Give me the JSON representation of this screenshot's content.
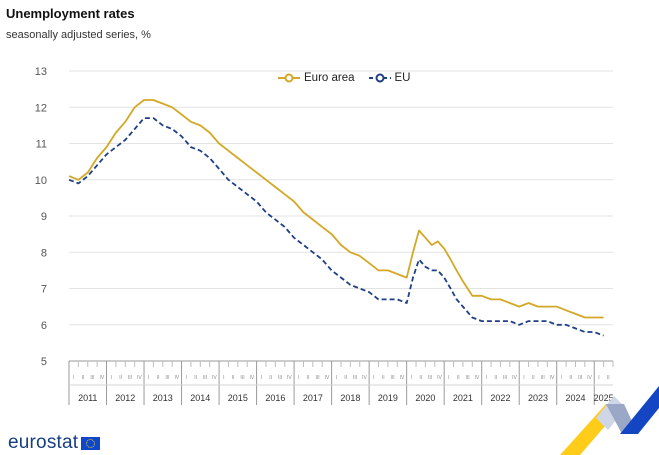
{
  "header": {
    "title": "Unemployment rates",
    "subtitle": "seasonally adjusted series, %"
  },
  "footer": {
    "brand": "eurostat"
  },
  "colors": {
    "euro_area": "#d4a826",
    "eu": "#1f3f86",
    "grid": "#e3e3e3",
    "axis_text": "#555555"
  },
  "chart_data": {
    "type": "line",
    "title": "Unemployment rates",
    "subtitle": "seasonally adjusted series, %",
    "ylim": [
      5,
      13
    ],
    "yticks": [
      5,
      6,
      7,
      8,
      9,
      10,
      11,
      12,
      13
    ],
    "xlim": [
      2011.0,
      2025.5
    ],
    "year_labels": [
      "2011",
      "2012",
      "2013",
      "2014",
      "2015",
      "2016",
      "2017",
      "2018",
      "2019",
      "2020",
      "2021",
      "2022",
      "2023",
      "2024",
      "2025"
    ],
    "quarter_labels": [
      "I",
      "II",
      "III",
      "IV"
    ],
    "legend": {
      "position": "top-center"
    },
    "grid": true,
    "series": [
      {
        "name": "Euro area",
        "style": "solid",
        "x": [
          2011.0,
          2011.25,
          2011.5,
          2011.75,
          2012.0,
          2012.25,
          2012.5,
          2012.75,
          2013.0,
          2013.25,
          2013.5,
          2013.75,
          2014.0,
          2014.25,
          2014.5,
          2014.75,
          2015.0,
          2015.25,
          2015.5,
          2015.75,
          2016.0,
          2016.25,
          2016.5,
          2016.75,
          2017.0,
          2017.25,
          2017.5,
          2017.75,
          2018.0,
          2018.25,
          2018.5,
          2018.75,
          2019.0,
          2019.25,
          2019.5,
          2019.75,
          2020.0,
          2020.17,
          2020.33,
          2020.5,
          2020.67,
          2020.83,
          2021.0,
          2021.17,
          2021.33,
          2021.5,
          2021.75,
          2022.0,
          2022.25,
          2022.5,
          2022.75,
          2023.0,
          2023.25,
          2023.5,
          2023.75,
          2024.0,
          2024.25,
          2024.5,
          2024.75,
          2025.0,
          2025.25
        ],
        "y": [
          10.1,
          10.0,
          10.2,
          10.6,
          10.9,
          11.3,
          11.6,
          12.0,
          12.2,
          12.2,
          12.1,
          12.0,
          11.8,
          11.6,
          11.5,
          11.3,
          11.0,
          10.8,
          10.6,
          10.4,
          10.2,
          10.0,
          9.8,
          9.6,
          9.4,
          9.1,
          8.9,
          8.7,
          8.5,
          8.2,
          8.0,
          7.9,
          7.7,
          7.5,
          7.5,
          7.4,
          7.3,
          8.0,
          8.6,
          8.4,
          8.2,
          8.3,
          8.1,
          7.8,
          7.5,
          7.2,
          6.8,
          6.8,
          6.7,
          6.7,
          6.6,
          6.5,
          6.6,
          6.5,
          6.5,
          6.5,
          6.4,
          6.3,
          6.2,
          6.2,
          6.2
        ]
      },
      {
        "name": "EU",
        "style": "dashed",
        "x": [
          2011.0,
          2011.25,
          2011.5,
          2011.75,
          2012.0,
          2012.25,
          2012.5,
          2012.75,
          2013.0,
          2013.25,
          2013.5,
          2013.75,
          2014.0,
          2014.25,
          2014.5,
          2014.75,
          2015.0,
          2015.25,
          2015.5,
          2015.75,
          2016.0,
          2016.25,
          2016.5,
          2016.75,
          2017.0,
          2017.25,
          2017.5,
          2017.75,
          2018.0,
          2018.25,
          2018.5,
          2018.75,
          2019.0,
          2019.25,
          2019.5,
          2019.75,
          2020.0,
          2020.17,
          2020.33,
          2020.5,
          2020.67,
          2020.83,
          2021.0,
          2021.17,
          2021.33,
          2021.5,
          2021.75,
          2022.0,
          2022.25,
          2022.5,
          2022.75,
          2023.0,
          2023.25,
          2023.5,
          2023.75,
          2024.0,
          2024.25,
          2024.5,
          2024.75,
          2025.0,
          2025.25
        ],
        "y": [
          10.0,
          9.9,
          10.1,
          10.4,
          10.7,
          10.9,
          11.1,
          11.4,
          11.7,
          11.7,
          11.5,
          11.4,
          11.2,
          10.9,
          10.8,
          10.6,
          10.3,
          10.0,
          9.8,
          9.6,
          9.4,
          9.1,
          8.9,
          8.7,
          8.4,
          8.2,
          8.0,
          7.8,
          7.5,
          7.3,
          7.1,
          7.0,
          6.9,
          6.7,
          6.7,
          6.7,
          6.6,
          7.3,
          7.8,
          7.6,
          7.5,
          7.5,
          7.3,
          7.0,
          6.7,
          6.5,
          6.2,
          6.1,
          6.1,
          6.1,
          6.1,
          6.0,
          6.1,
          6.1,
          6.1,
          6.0,
          6.0,
          5.9,
          5.8,
          5.8,
          5.7
        ]
      }
    ]
  }
}
